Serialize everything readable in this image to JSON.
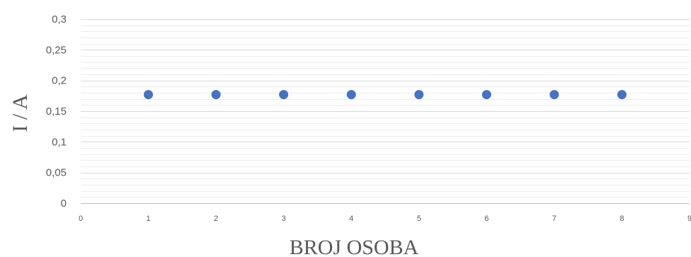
{
  "chart_data": {
    "type": "scatter",
    "title": "",
    "xlabel": "BROJ OSOBA",
    "ylabel": "I / A",
    "xlim": [
      0,
      9
    ],
    "ylim": [
      0,
      0.3
    ],
    "x_ticks": [
      "0",
      "1",
      "2",
      "3",
      "4",
      "5",
      "6",
      "7",
      "8",
      "9"
    ],
    "y_ticks": [
      "0",
      "0,05",
      "0,1",
      "0,15",
      "0,2",
      "0,25",
      "0,3"
    ],
    "grid": true,
    "legend": "none",
    "marker_color": "#4472c4",
    "series": [
      {
        "x": [
          1,
          2,
          3,
          4,
          5,
          6,
          7,
          8
        ],
        "y": [
          0.177,
          0.177,
          0.177,
          0.177,
          0.177,
          0.177,
          0.177,
          0.177
        ]
      }
    ]
  }
}
